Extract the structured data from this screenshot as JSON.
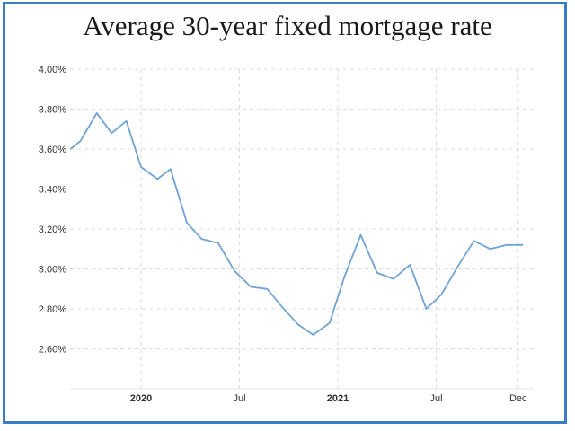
{
  "chart_data": {
    "type": "line",
    "title": "Average 30-year fixed mortgage rate",
    "xlabel": "",
    "ylabel": "",
    "ylim": [
      2.4,
      4.0
    ],
    "y_ticks": [
      "4.00%",
      "3.80%",
      "3.60%",
      "3.40%",
      "3.20%",
      "3.00%",
      "2.80%",
      "2.60%"
    ],
    "y_tick_values": [
      4.0,
      3.8,
      3.6,
      3.4,
      3.2,
      3.0,
      2.8,
      2.6
    ],
    "x_ticks": [
      {
        "label": "2020",
        "t": 3.0,
        "bold": true
      },
      {
        "label": "Jul",
        "t": 9.0,
        "bold": false
      },
      {
        "label": "2021",
        "t": 15.0,
        "bold": true
      },
      {
        "label": "Jul",
        "t": 21.0,
        "bold": false
      },
      {
        "label": "Dec",
        "t": 26.0,
        "bold": false
      }
    ],
    "grid": true,
    "series": [
      {
        "color": "#6fa3d6",
        "x": [
          -1.3,
          -0.7,
          0.3,
          1.2,
          2.1,
          3.0,
          4.0,
          4.8,
          5.8,
          6.7,
          7.7,
          8.7,
          9.7,
          10.7,
          11.6,
          12.6,
          13.5,
          14.5,
          15.4,
          16.4,
          17.4,
          18.4,
          19.4,
          20.4,
          21.3,
          22.3,
          23.3,
          24.3,
          25.3,
          26.3
        ],
        "values": [
          3.6,
          3.64,
          3.78,
          3.68,
          3.74,
          3.51,
          3.45,
          3.5,
          3.23,
          3.15,
          3.13,
          2.99,
          2.91,
          2.9,
          2.81,
          2.72,
          2.67,
          2.73,
          2.96,
          3.17,
          2.98,
          2.95,
          3.02,
          2.8,
          2.87,
          3.01,
          3.14,
          3.1,
          3.12,
          3.12
        ]
      }
    ]
  }
}
